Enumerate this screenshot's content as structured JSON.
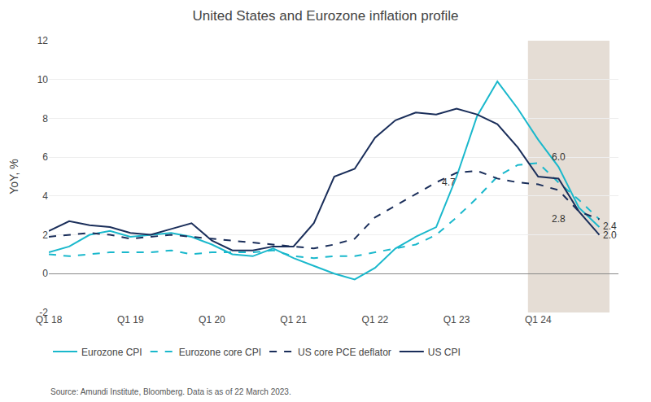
{
  "chart_data": {
    "type": "line",
    "title": "United States and Eurozone inflation profile",
    "y_label": "YoY, %",
    "source": "Source: Amundi Institute, Bloomberg. Data is as of 22 March 2023.",
    "categories": [
      "Q1 18",
      null,
      null,
      null,
      "Q1 19",
      null,
      null,
      null,
      "Q1 20",
      null,
      null,
      null,
      "Q1 21",
      null,
      null,
      null,
      "Q1 22",
      null,
      null,
      null,
      "Q1 23",
      null,
      null,
      null,
      "Q1 24",
      null,
      null,
      null
    ],
    "series": [
      {
        "name": "Eurozone CPI",
        "color": "#1ab8cc",
        "line_style": "solid",
        "values": [
          1.1,
          1.4,
          2.0,
          2.2,
          1.9,
          2.0,
          2.1,
          1.9,
          1.5,
          1.0,
          0.9,
          1.3,
          0.8,
          0.4,
          0.0,
          -0.3,
          0.3,
          1.3,
          1.9,
          2.4,
          5.0,
          8.1,
          9.9,
          8.5,
          6.9,
          5.5,
          3.4,
          2.4
        ]
      },
      {
        "name": "Eurozone core CPI",
        "color": "#1ab8cc",
        "line_style": "dashed",
        "values": [
          1.0,
          0.9,
          1.0,
          1.1,
          1.1,
          1.1,
          1.2,
          1.0,
          1.1,
          1.1,
          1.1,
          1.2,
          0.9,
          0.8,
          0.9,
          0.9,
          1.1,
          1.3,
          1.5,
          2.0,
          2.9,
          3.9,
          5.0,
          5.6,
          5.7,
          4.7,
          3.8,
          2.8
        ]
      },
      {
        "name": "US core PCE deflator",
        "color": "#1a2e5a",
        "line_style": "dashed",
        "values": [
          1.9,
          2.0,
          2.1,
          2.0,
          1.8,
          1.9,
          2.0,
          1.9,
          1.8,
          1.7,
          1.6,
          1.5,
          1.4,
          1.3,
          1.5,
          1.8,
          2.9,
          3.5,
          4.1,
          4.7,
          5.2,
          5.3,
          4.9,
          4.7,
          4.6,
          4.3,
          3.2,
          2.8
        ]
      },
      {
        "name": "US CPI",
        "color": "#1a2e5a",
        "line_style": "solid",
        "values": [
          2.2,
          2.7,
          2.5,
          2.4,
          2.1,
          2.0,
          2.3,
          2.6,
          1.7,
          1.2,
          1.2,
          1.4,
          1.4,
          2.6,
          5.0,
          5.4,
          7.0,
          7.9,
          8.3,
          8.2,
          8.5,
          8.2,
          7.7,
          6.5,
          5.0,
          4.9,
          3.2,
          2.0
        ]
      }
    ],
    "ylim": [
      -2,
      12
    ],
    "yticks": [
      -2,
      0,
      2,
      4,
      6,
      8,
      10,
      12
    ],
    "grid": "y",
    "legend": "bottom",
    "shade": {
      "x_start": 23.5,
      "x_end": 27.5,
      "color": "#e5ddd5"
    },
    "annotations": [
      {
        "text": "6.0",
        "x": 24.6,
        "y": 6.0
      },
      {
        "text": "4.7",
        "x": 19.2,
        "y": 4.7
      },
      {
        "text": "2.8",
        "x": 24.6,
        "y": 2.8
      },
      {
        "text": "2.4",
        "x": 27.1,
        "y": 2.45
      },
      {
        "text": "2.0",
        "x": 27.1,
        "y": 2.0
      }
    ]
  }
}
